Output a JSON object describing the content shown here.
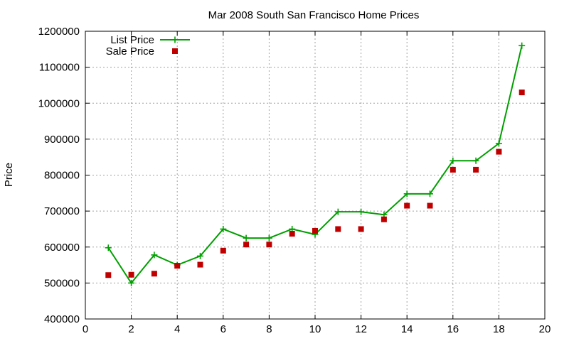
{
  "chart_data": {
    "type": "line",
    "title": "Mar 2008 South San Francisco Home Prices",
    "xlabel": "",
    "ylabel": "Price",
    "xlim": [
      0,
      20
    ],
    "ylim": [
      400000,
      1200000
    ],
    "xticks": [
      0,
      2,
      4,
      6,
      8,
      10,
      12,
      14,
      16,
      18,
      20
    ],
    "yticks": [
      400000,
      500000,
      600000,
      700000,
      800000,
      900000,
      1000000,
      1100000,
      1200000
    ],
    "grid": true,
    "legend_position": "top-left",
    "series": [
      {
        "name": "List Price",
        "style": "linespoints",
        "marker": "plus",
        "color": "#00a000",
        "x": [
          1,
          2,
          3,
          4,
          5,
          6,
          7,
          8,
          9,
          10,
          11,
          12,
          13,
          14,
          15,
          16,
          17,
          18,
          19
        ],
        "y": [
          598000,
          500000,
          578000,
          550000,
          575000,
          650000,
          625000,
          625000,
          650000,
          635000,
          698000,
          698000,
          690000,
          748000,
          748000,
          840000,
          840000,
          888000,
          1160000
        ]
      },
      {
        "name": "Sale Price",
        "style": "points",
        "marker": "square",
        "color": "#c00000",
        "x": [
          1,
          2,
          3,
          4,
          5,
          6,
          7,
          8,
          9,
          10,
          11,
          12,
          13,
          14,
          15,
          16,
          17,
          18,
          19
        ],
        "y": [
          522000,
          523000,
          526000,
          548000,
          551000,
          590000,
          607000,
          607000,
          637000,
          645000,
          650000,
          650000,
          677000,
          715000,
          715000,
          815000,
          815000,
          865000,
          1030000
        ]
      }
    ]
  }
}
